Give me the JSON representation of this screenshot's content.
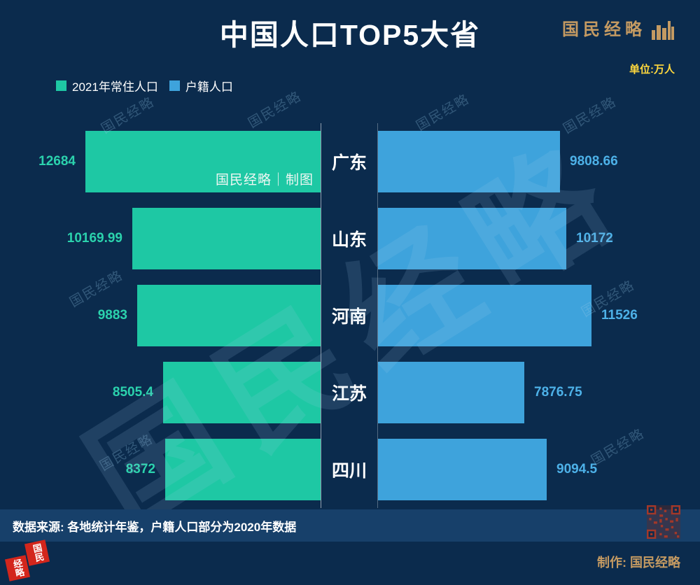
{
  "title": "中国人口TOP5大省",
  "logo": {
    "text": "国民经略"
  },
  "unit_label": "单位:万人",
  "legend": {
    "resident": {
      "label": "2021年常住人口",
      "color": "#1ec8a4"
    },
    "registered": {
      "label": "户籍人口",
      "color": "#3ea3dc"
    }
  },
  "chart_data": {
    "type": "bar",
    "variant": "butterfly-horizontal",
    "title": "中国人口TOP5大省",
    "unit": "万人",
    "categories": [
      "广东",
      "山东",
      "河南",
      "江苏",
      "四川"
    ],
    "series": [
      {
        "name": "2021年常住人口",
        "color": "#1ec8a4",
        "side": "left",
        "values": [
          12684,
          10169.99,
          9883,
          8505.4,
          8372
        ],
        "labels": [
          "12684",
          "10169.99",
          "9883",
          "8505.4",
          "8372"
        ]
      },
      {
        "name": "户籍人口",
        "color": "#3ea3dc",
        "side": "right",
        "values": [
          9808.66,
          10172,
          11526,
          7876.75,
          9094.5
        ],
        "labels": [
          "9808.66",
          "10172",
          "11526",
          "7876.75",
          "9094.5"
        ]
      }
    ],
    "value_axis_max": 12684,
    "legend_position": "top-left",
    "grid": false
  },
  "bar_note": "国民经略｜制图",
  "watermark_text": "国民经略",
  "footer": {
    "source": "数据来源: 各地统计年鉴，户籍人口部分为2020年数据",
    "credit": "制作: 国民经略"
  },
  "seal": {
    "right": "国民",
    "left": "经略"
  }
}
